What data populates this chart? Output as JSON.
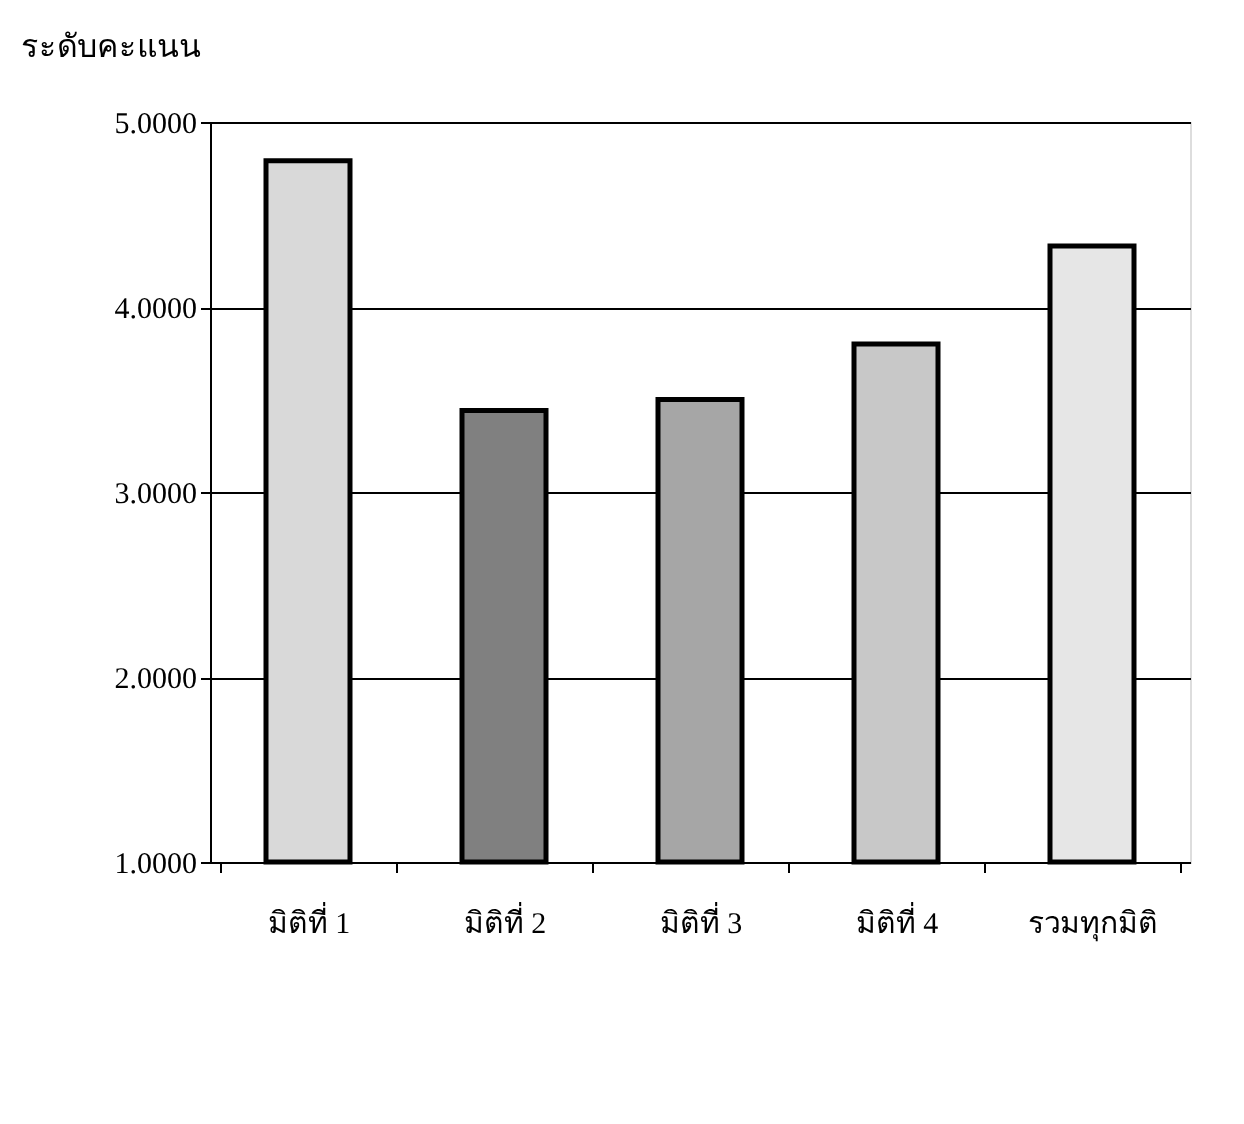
{
  "chart_data": {
    "type": "bar",
    "ylabel": "ระดับคะแนน",
    "categories": [
      "มิติที่ 1",
      "มิติที่ 2",
      "มิติที่ 3",
      "มิติที่ 4",
      "รวมทุกมิติ"
    ],
    "values": [
      4.79,
      3.44,
      3.5,
      3.8,
      4.33
    ],
    "colors": [
      "#d9d9d9",
      "#808080",
      "#a6a6a6",
      "#c8c8c8",
      "#e6e6e6"
    ],
    "ylim": [
      1,
      5
    ],
    "yticks": [
      {
        "value": 1,
        "label": "1.0000"
      },
      {
        "value": 2,
        "label": "2.0000"
      },
      {
        "value": 3,
        "label": "3.0000"
      },
      {
        "value": 4,
        "label": "4.0000"
      },
      {
        "value": 5,
        "label": "5.0000"
      }
    ],
    "grid": "y"
  }
}
